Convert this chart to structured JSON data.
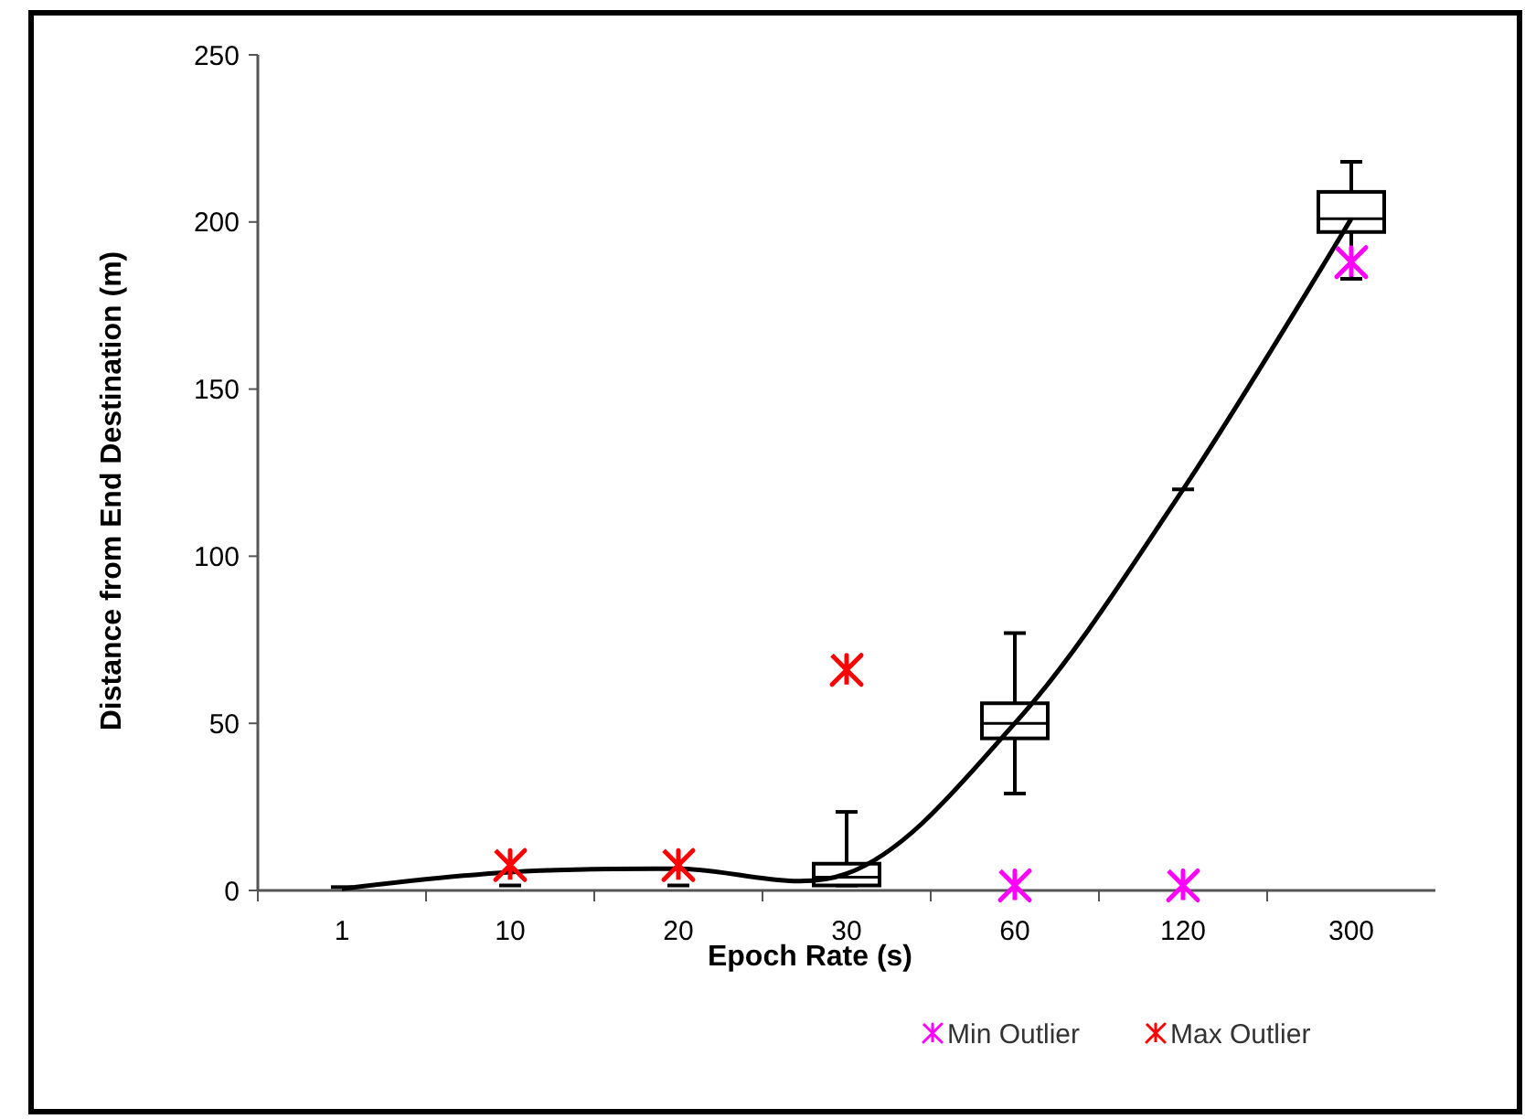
{
  "chart_data": {
    "type": "box",
    "xlabel": "Epoch Rate (s)",
    "ylabel": "Distance from End Destination (m)",
    "color": "#000000",
    "categories": [
      "1",
      "10",
      "20",
      "30",
      "60",
      "120",
      "300"
    ],
    "boxes": [
      {
        "low": 1,
        "q1": 1,
        "median": 1,
        "q3": 1,
        "high": 1
      },
      {
        "low": 1.5,
        "q1": 1.5,
        "median": 1.5,
        "q3": 1.5,
        "high": 1.5
      },
      {
        "low": 1.5,
        "q1": 1.5,
        "median": 1.5,
        "q3": 1.5,
        "high": 1.5
      },
      {
        "low": 1.5,
        "q1": 1.5,
        "median": 4,
        "q3": 8,
        "high": 23.5
      },
      {
        "low": 29,
        "q1": 45.5,
        "median": 50,
        "q3": 56,
        "high": 77
      },
      {
        "low": 120,
        "q1": 120,
        "median": 120,
        "q3": 120,
        "high": 120
      },
      {
        "low": 183,
        "q1": 197,
        "median": 201,
        "q3": 209,
        "high": 218
      }
    ],
    "series": [
      {
        "type": "line",
        "color": "#000000",
        "marker": "none",
        "values": [
          0.5,
          5.5,
          6.5,
          5,
          50,
          120,
          201
        ]
      },
      {
        "type": "scatter",
        "name": "Min Outlier",
        "color": "#ff00ff",
        "marker": "cross",
        "x": [
          "60",
          "120",
          "300"
        ],
        "values": [
          1.5,
          1.5,
          188
        ]
      },
      {
        "type": "scatter",
        "name": "Max Outlier",
        "color": "#ff0000",
        "marker": "cross",
        "x": [
          "10",
          "20",
          "30"
        ],
        "values": [
          7.6,
          7.6,
          66
        ]
      }
    ],
    "ylim": [
      0,
      250
    ],
    "yticks": [
      0,
      50,
      100,
      150,
      200,
      250
    ],
    "grid": false,
    "legend": "bottom right"
  }
}
